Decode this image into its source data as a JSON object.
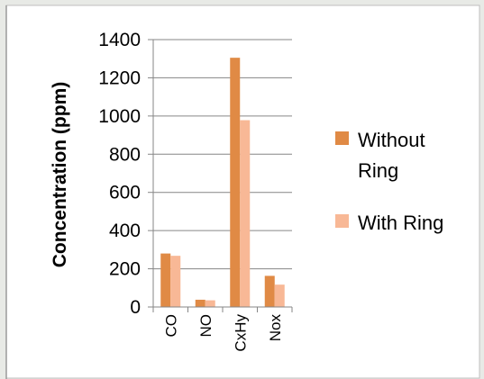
{
  "chart_data": {
    "type": "bar",
    "categories": [
      "CO",
      "NO",
      "CxHy",
      "Nox"
    ],
    "series": [
      {
        "name": "Without Ring",
        "values": [
          280,
          38,
          1305,
          163
        ],
        "color": "#e08a45"
      },
      {
        "name": "With Ring",
        "values": [
          268,
          35,
          978,
          117
        ],
        "color": "#f8b896"
      }
    ],
    "ylabel": "Concentration (ppm)",
    "xlabel": "",
    "ylim": [
      0,
      1400
    ],
    "yticks": [
      0,
      200,
      400,
      600,
      800,
      1000,
      1200,
      1400
    ],
    "grid": true,
    "legend": {
      "placement": "right",
      "entries": [
        {
          "lines": [
            "Without",
            "Ring"
          ]
        },
        {
          "lines": [
            "With Ring"
          ]
        }
      ]
    },
    "colors": {
      "frame_background": "#ffffff",
      "page_background": "#e8eae6",
      "gridline": "#868686"
    }
  }
}
